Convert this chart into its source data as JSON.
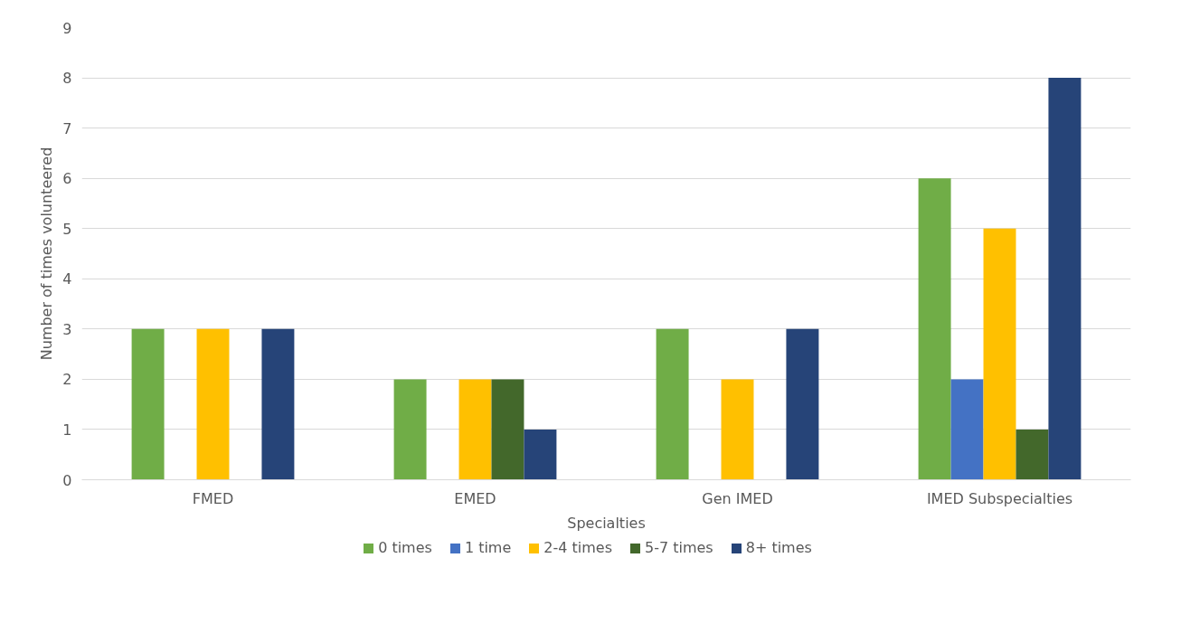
{
  "chart_data": {
    "type": "bar",
    "xlabel": "Specialties",
    "ylabel": "Number of times volunteered",
    "categories": [
      "FMED",
      "EMED",
      "Gen IMED",
      "IMED Subspecialties"
    ],
    "series": [
      {
        "name": "0 times",
        "color": "#70ad47",
        "values": [
          3,
          2,
          3,
          6
        ]
      },
      {
        "name": "1 time",
        "color": "#4472c4",
        "values": [
          0,
          0,
          0,
          2
        ]
      },
      {
        "name": "2-4 times",
        "color": "#ffc000",
        "values": [
          3,
          2,
          2,
          5
        ]
      },
      {
        "name": "5-7 times",
        "color": "#43682b",
        "values": [
          0,
          2,
          0,
          1
        ]
      },
      {
        "name": "8+ times",
        "color": "#264478",
        "values": [
          3,
          1,
          3,
          8
        ]
      }
    ],
    "ylim": [
      0,
      9
    ],
    "yticks": [
      0,
      1,
      2,
      3,
      4,
      5,
      6,
      7,
      8,
      9
    ],
    "grid": "y",
    "legend": "bottom"
  }
}
